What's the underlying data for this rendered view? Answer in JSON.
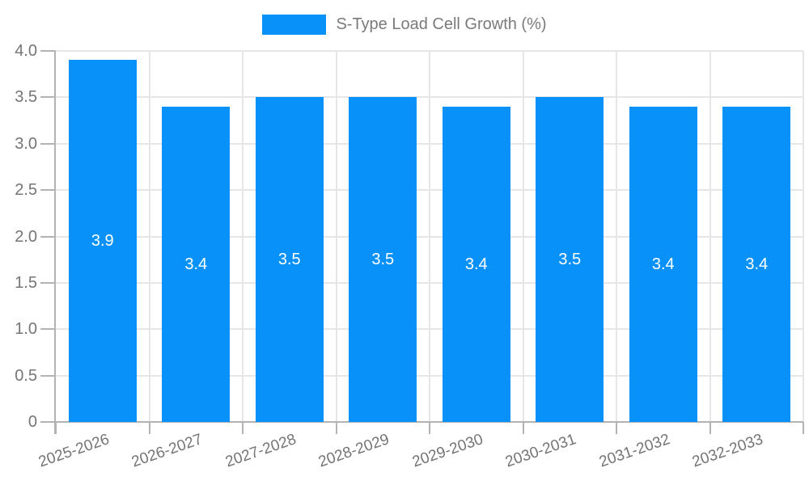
{
  "chart_data": {
    "type": "bar",
    "title": "",
    "legend_position": "top",
    "legend": [
      {
        "label": "S-Type Load Cell Growth (%)",
        "color": "#0791f9"
      }
    ],
    "categories": [
      "2025-2026",
      "2026-2027",
      "2027-2028",
      "2028-2029",
      "2029-2030",
      "2030-2031",
      "2031-2032",
      "2032-2033"
    ],
    "values": [
      3.9,
      3.4,
      3.5,
      3.5,
      3.4,
      3.5,
      3.4,
      3.4
    ],
    "bar_value_labels": [
      "3.9",
      "3.4",
      "3.5",
      "3.5",
      "3.4",
      "3.5",
      "3.4",
      "3.4"
    ],
    "xlabel": "",
    "ylabel": "",
    "ylim": [
      0,
      4
    ],
    "ytick_step": 0.5,
    "ytick_labels": [
      "0",
      "0.5",
      "1.0",
      "1.5",
      "2.0",
      "2.5",
      "3.0",
      "3.5",
      "4.0"
    ],
    "grid": true,
    "colors": {
      "bar": "#0791f9",
      "grid": "#e6e6e6",
      "axis": "#b3b3b3",
      "tick_label": "#757575",
      "bar_label": "#ffffff",
      "legend_text": "#7a7a7a"
    }
  }
}
